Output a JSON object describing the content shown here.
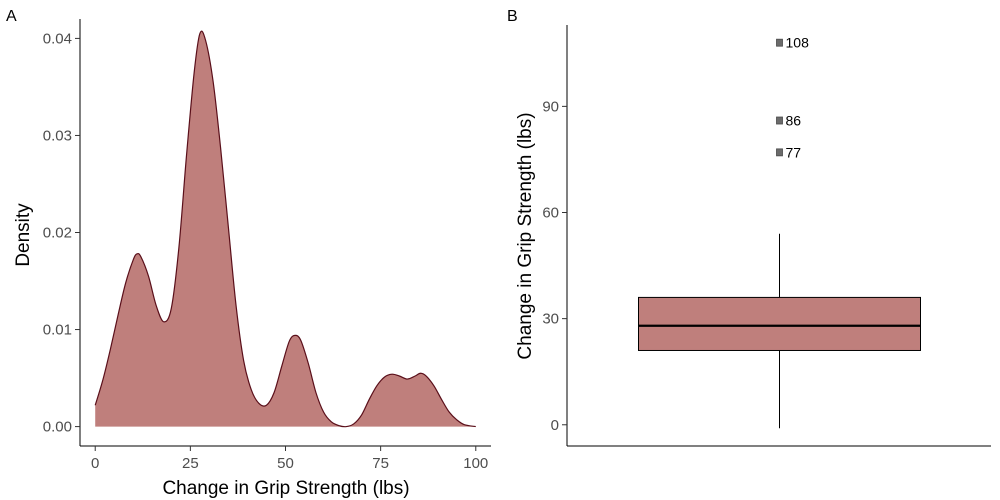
{
  "chart_data": [
    {
      "panel_label": "A",
      "type": "area",
      "xlabel": "Change in Grip Strength (lbs)",
      "ylabel": "Density",
      "xlim": [
        -4,
        104
      ],
      "ylim": [
        -0.002,
        0.042
      ],
      "x_ticks": [
        0,
        25,
        50,
        75,
        100
      ],
      "x_tick_labels": [
        "0",
        "25",
        "50",
        "75",
        "100"
      ],
      "y_ticks": [
        0,
        0.01,
        0.02,
        0.03,
        0.04
      ],
      "y_tick_labels": [
        "0.00",
        "0.01",
        "0.02",
        "0.03",
        "0.04"
      ],
      "grid": false,
      "fill_color": "#bf7f7c",
      "line_color": "#5a0f1a",
      "x": [
        0,
        2,
        4,
        6,
        8,
        10,
        11,
        12,
        14,
        16,
        18,
        20,
        22,
        24,
        26,
        27.5,
        29,
        31,
        33,
        35,
        37,
        39,
        41,
        43,
        45,
        47,
        49,
        51,
        52.5,
        54,
        56,
        58,
        60,
        62,
        64,
        66,
        68,
        70,
        72,
        74,
        76,
        78,
        80,
        82,
        84,
        85.5,
        87,
        89,
        91,
        93,
        95,
        97,
        100
      ],
      "y": [
        0.0022,
        0.0048,
        0.008,
        0.0115,
        0.0148,
        0.0172,
        0.0178,
        0.0175,
        0.0155,
        0.0125,
        0.0108,
        0.0122,
        0.0185,
        0.028,
        0.0365,
        0.0405,
        0.0398,
        0.0355,
        0.0285,
        0.0205,
        0.0125,
        0.0068,
        0.0038,
        0.0024,
        0.0022,
        0.0035,
        0.0062,
        0.0088,
        0.0094,
        0.0089,
        0.0065,
        0.0035,
        0.0015,
        0.0005,
        0.0001,
        0.0,
        0.0003,
        0.0012,
        0.0028,
        0.0042,
        0.0051,
        0.0054,
        0.0052,
        0.0049,
        0.0052,
        0.0055,
        0.0052,
        0.0042,
        0.0028,
        0.0015,
        0.0007,
        0.0002,
        0.0
      ]
    },
    {
      "panel_label": "B",
      "type": "boxplot",
      "xlabel": "",
      "ylabel": "Change in Grip Strength (lbs)",
      "ylim": [
        -6,
        113
      ],
      "y_ticks": [
        0,
        30,
        60,
        90
      ],
      "y_tick_labels": [
        "0",
        "30",
        "60",
        "90"
      ],
      "grid": false,
      "fill_color": "#bf7f7c",
      "line_color": "#000000",
      "outlier_color": "#6b6b6b",
      "box": {
        "whisker_low": -1,
        "q1": 21,
        "median": 28,
        "q3": 36,
        "whisker_high": 54
      },
      "outliers": [
        {
          "value": 108,
          "label": "108"
        },
        {
          "value": 86,
          "label": "86"
        },
        {
          "value": 77,
          "label": "77"
        }
      ]
    }
  ]
}
